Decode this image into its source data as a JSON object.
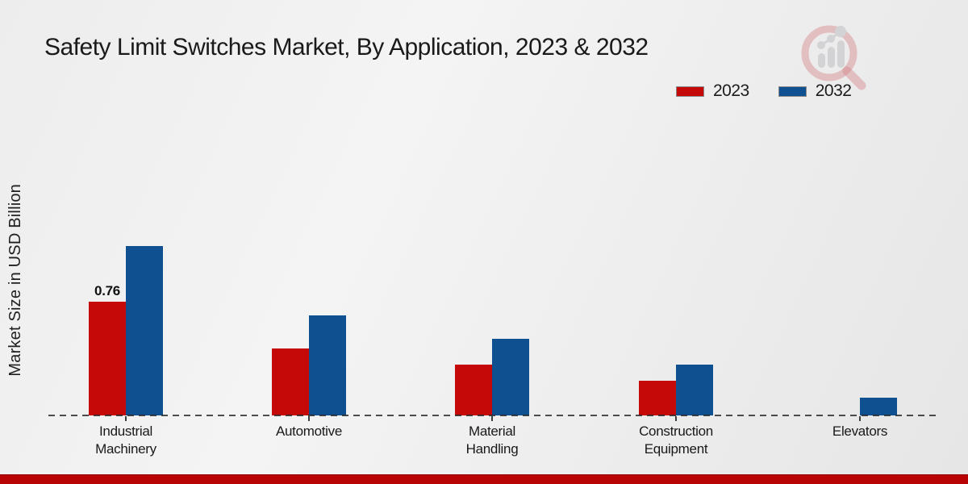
{
  "header": {
    "title": "Safety Limit Switches Market, By Application, 2023 & 2032"
  },
  "ylabel": "Market Size in USD Billion",
  "legend": [
    {
      "label": "2023",
      "color": "#c50808"
    },
    {
      "label": "2032",
      "color": "#0f5190"
    }
  ],
  "colors": {
    "bar_2023_red": "#c50808",
    "bar_2032_blue": "#0f5190",
    "footer_stripe_red": "#b80404",
    "baseline_gray": "#3a3a3a",
    "background_gray": "#ededed"
  },
  "icons": {
    "watermark": "magnifier-bar-chart-logo-icon"
  },
  "chart_data": {
    "type": "bar",
    "title": "Safety Limit Switches Market, By Application, 2023 & 2032",
    "xlabel": "",
    "ylabel": "Market Size in USD Billion",
    "ylim": [
      0,
      1.25
    ],
    "grid": false,
    "legend_position": "top-right",
    "baseline_style": "dashed",
    "categories": [
      "Industrial Machinery",
      "Automotive",
      "Material Handling",
      "Construction Equipment",
      "Elevators"
    ],
    "category_display_labels": [
      "Industrial\nMachinery",
      "Automotive",
      "Material\nHandling",
      "Construction\nEquipment",
      "Elevators"
    ],
    "series": [
      {
        "name": "2023",
        "color": "#c50808",
        "values": [
          0.76,
          0.45,
          0.34,
          0.23,
          0
        ]
      },
      {
        "name": "2032",
        "color": "#0f5190",
        "values": [
          1.13,
          0.67,
          0.51,
          0.34,
          0.12
        ]
      }
    ],
    "annotations": [
      {
        "category_index": 0,
        "series": "2023",
        "text": "0.76"
      }
    ]
  }
}
